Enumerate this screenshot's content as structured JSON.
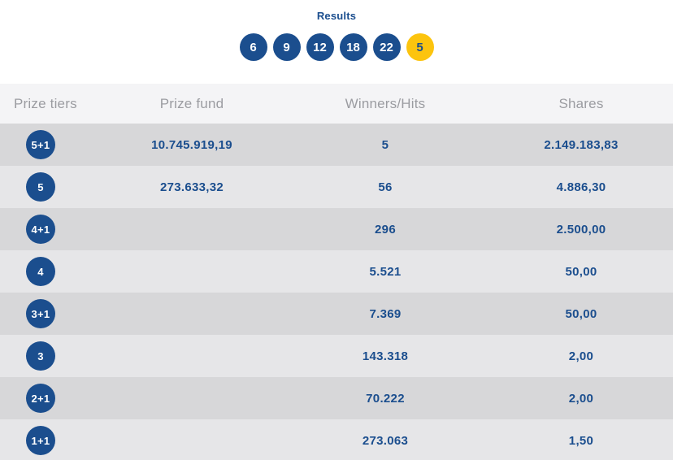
{
  "header": {
    "title": "Results"
  },
  "colors": {
    "primary_blue": "#1b4e8e",
    "bonus_yellow": "#fcc40e",
    "header_row_bg": "#f4f4f6",
    "row_light_bg": "#e6e6e8",
    "row_dark_bg": "#d7d7d9",
    "header_text": "#9b9ca1"
  },
  "balls": [
    {
      "value": "6",
      "type": "main"
    },
    {
      "value": "9",
      "type": "main"
    },
    {
      "value": "12",
      "type": "main"
    },
    {
      "value": "18",
      "type": "main"
    },
    {
      "value": "22",
      "type": "main"
    },
    {
      "value": "5",
      "type": "bonus"
    }
  ],
  "table": {
    "headers": [
      "Prize tiers",
      "Prize fund",
      "Winners/Hits",
      "Shares"
    ],
    "rows": [
      {
        "tier": "5+1",
        "prize_fund": "10.745.919,19",
        "winners": "5",
        "shares": "2.149.183,83"
      },
      {
        "tier": "5",
        "prize_fund": "273.633,32",
        "winners": "56",
        "shares": "4.886,30"
      },
      {
        "tier": "4+1",
        "prize_fund": "",
        "winners": "296",
        "shares": "2.500,00"
      },
      {
        "tier": "4",
        "prize_fund": "",
        "winners": "5.521",
        "shares": "50,00"
      },
      {
        "tier": "3+1",
        "prize_fund": "",
        "winners": "7.369",
        "shares": "50,00"
      },
      {
        "tier": "3",
        "prize_fund": "",
        "winners": "143.318",
        "shares": "2,00"
      },
      {
        "tier": "2+1",
        "prize_fund": "",
        "winners": "70.222",
        "shares": "2,00"
      },
      {
        "tier": "1+1",
        "prize_fund": "",
        "winners": "273.063",
        "shares": "1,50"
      }
    ]
  }
}
